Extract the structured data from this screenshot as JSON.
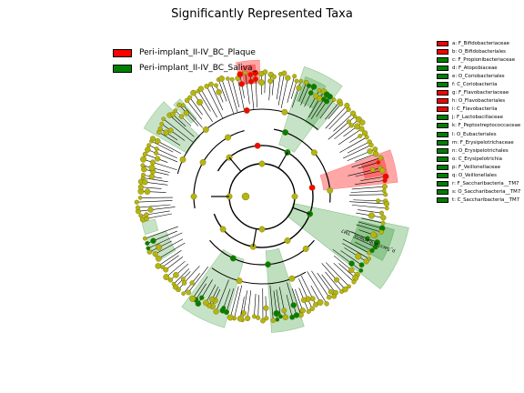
{
  "title": "Significantly Represented Taxa",
  "colors": {
    "plaque": "#ff0000",
    "saliva": "#008000",
    "node_default": "#b5b512",
    "node_edge": "#6a6a00"
  },
  "main_legend": [
    {
      "label": "Peri-implant_II-IV_BC_Plaque",
      "group": "plaque"
    },
    {
      "label": "Peri-implant_II-IV_BC_Saliva_",
      "group": "saliva"
    }
  ],
  "taxa_legend": [
    {
      "label": "a: F_Bifidobacteriaceae",
      "group": "plaque"
    },
    {
      "label": "b: O_Bifidobacteriales",
      "group": "plaque"
    },
    {
      "label": "c: F_Propionibacteriaceae",
      "group": "saliva"
    },
    {
      "label": "d: F_Atopobiaceae",
      "group": "saliva"
    },
    {
      "label": "e: O_Coriobacteriales",
      "group": "saliva"
    },
    {
      "label": "f: C_Coriobacteriia",
      "group": "saliva"
    },
    {
      "label": "g: F_Flavobacteriaceae",
      "group": "plaque"
    },
    {
      "label": "h: O_Flavobacteriales",
      "group": "plaque"
    },
    {
      "label": "i: C_Flavobacteriia",
      "group": "plaque"
    },
    {
      "label": "j: F_Lactobacillaceae",
      "group": "saliva"
    },
    {
      "label": "k: F_Peptostreptococcaceae",
      "group": "saliva"
    },
    {
      "label": "l: O_Eubacteriales",
      "group": "saliva"
    },
    {
      "label": "m: F_Erysipelotrichaceae",
      "group": "saliva"
    },
    {
      "label": "n: O_Erysipelotrichales",
      "group": "saliva"
    },
    {
      "label": "o: C_Erysipelotrichia",
      "group": "saliva"
    },
    {
      "label": "p: F_Veillonellaceae",
      "group": "saliva"
    },
    {
      "label": "q: O_Veillonellales",
      "group": "saliva"
    },
    {
      "label": "r: F_Saccharibacteria__TM7",
      "group": "saliva"
    },
    {
      "label": "s: O_Saccharibacteria__TM7",
      "group": "saliva"
    },
    {
      "label": "t: C_Saccharibacteria__TM7",
      "group": "saliva"
    }
  ],
  "sector_labels": {
    "phylum_saccharibacteria": "p_Saccharibacteria__TM7"
  }
}
